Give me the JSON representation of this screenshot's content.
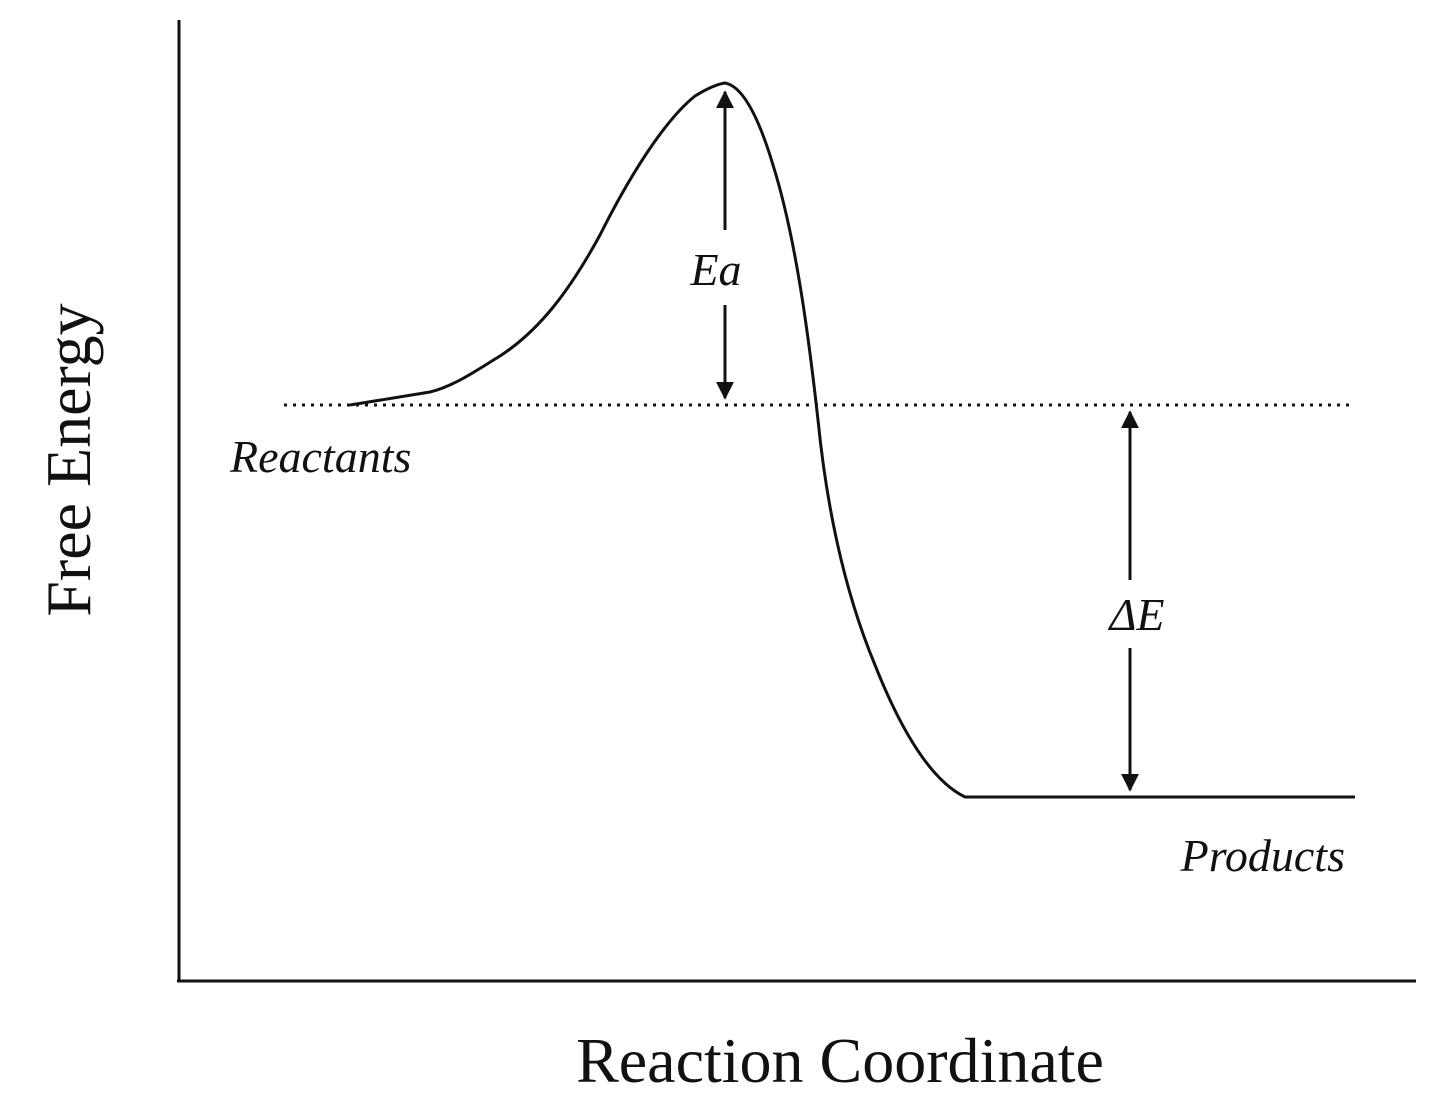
{
  "diagram": {
    "y_axis_label": "Free Energy",
    "x_axis_label": "Reaction Coordinate",
    "reactants_label": "Reactants",
    "products_label": "Products",
    "activation_energy_label": "Ea",
    "delta_e_label": "ΔE"
  },
  "colors": {
    "line": "#111111",
    "background": "#ffffff"
  }
}
